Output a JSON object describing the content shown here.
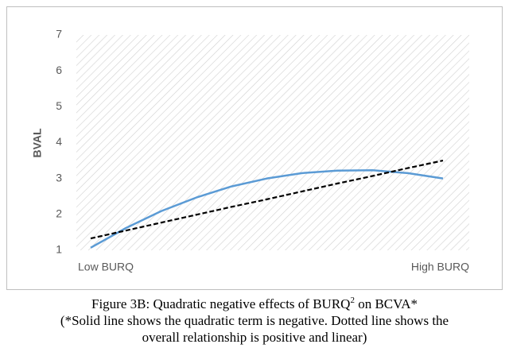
{
  "chart_data": {
    "type": "line",
    "y_label": "BVAL",
    "categories": [
      "Low BURQ",
      null,
      null,
      null,
      null,
      null,
      null,
      null,
      null,
      null,
      "High BURQ"
    ],
    "series": [
      {
        "color": "#5b9bd5",
        "dashed": false,
        "values": [
          1.07,
          1.62,
          2.09,
          2.47,
          2.78,
          3.0,
          3.15,
          3.22,
          3.23,
          3.15,
          3.0
        ]
      },
      {
        "color": "#000000",
        "dashed": true,
        "values": [
          1.33,
          1.55,
          1.77,
          1.99,
          2.21,
          2.42,
          2.64,
          2.86,
          3.07,
          3.29,
          3.5
        ]
      }
    ],
    "ylim": [
      1,
      7
    ],
    "yticks": [
      1,
      2,
      3,
      4,
      5,
      6,
      7
    ],
    "hatched_background": true,
    "caption": {
      "before": "Figure 3B: Quadratic negative effects of BURQ",
      "sup": "2",
      "after": " on BCVA*",
      "notes": [
        "(*Solid line shows the quadratic term is negative. Dotted line shows the",
        "overall relationship is positive and linear)"
      ]
    }
  }
}
